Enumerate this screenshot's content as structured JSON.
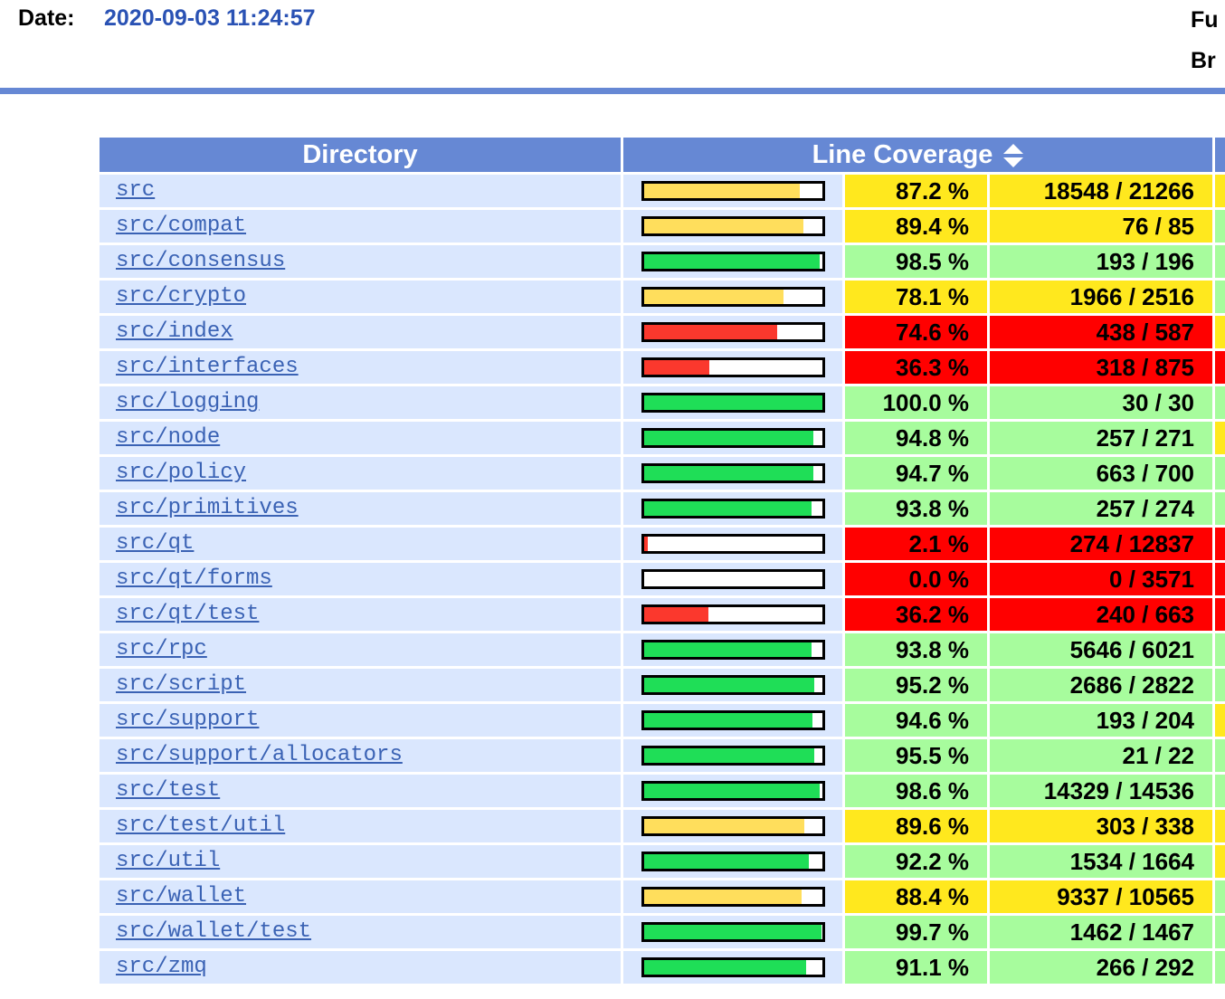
{
  "page": {
    "date_label": "Date:",
    "date_value": "2020-09-03 11:24:57",
    "top_right_fragment_1": "Fu",
    "top_right_fragment_2": "Br"
  },
  "colors": {
    "header_blue": "#6688D4",
    "row_background": "#DAE7FE",
    "coverage_high_cell": "#A7FC9D",
    "coverage_medium_cell": "#FFE81E",
    "coverage_low_cell": "#FF0000",
    "bar_high": "#1FDE57",
    "bar_medium": "#FFDE5C",
    "bar_low": "#FB382D",
    "link_blue": "#3A62B4"
  },
  "table": {
    "col_directory": "Directory",
    "col_line_coverage": "Line Coverage",
    "sort_icon": "up-down-arrows",
    "rows": [
      {
        "dir": "src",
        "pct": "87.2 %",
        "count": "18548 / 21266",
        "level": "med",
        "value": 87.2,
        "extra_level": "med"
      },
      {
        "dir": "src/compat",
        "pct": "89.4 %",
        "count": "76 / 85",
        "level": "med",
        "value": 89.4,
        "extra_level": "hi"
      },
      {
        "dir": "src/consensus",
        "pct": "98.5 %",
        "count": "193 / 196",
        "level": "hi",
        "value": 98.5,
        "extra_level": "hi"
      },
      {
        "dir": "src/crypto",
        "pct": "78.1 %",
        "count": "1966 / 2516",
        "level": "med",
        "value": 78.1,
        "extra_level": "hi"
      },
      {
        "dir": "src/index",
        "pct": "74.6 %",
        "count": "438 / 587",
        "level": "lo",
        "value": 74.6,
        "extra_level": "med"
      },
      {
        "dir": "src/interfaces",
        "pct": "36.3 %",
        "count": "318 / 875",
        "level": "lo",
        "value": 36.3,
        "extra_level": "lo"
      },
      {
        "dir": "src/logging",
        "pct": "100.0 %",
        "count": "30 / 30",
        "level": "hi",
        "value": 100.0,
        "extra_level": "hi"
      },
      {
        "dir": "src/node",
        "pct": "94.8 %",
        "count": "257 / 271",
        "level": "hi",
        "value": 94.8,
        "extra_level": "med"
      },
      {
        "dir": "src/policy",
        "pct": "94.7 %",
        "count": "663 / 700",
        "level": "hi",
        "value": 94.7,
        "extra_level": "hi"
      },
      {
        "dir": "src/primitives",
        "pct": "93.8 %",
        "count": "257 / 274",
        "level": "hi",
        "value": 93.8,
        "extra_level": "hi"
      },
      {
        "dir": "src/qt",
        "pct": "2.1 %",
        "count": "274 / 12837",
        "level": "lo",
        "value": 2.1,
        "extra_level": "lo"
      },
      {
        "dir": "src/qt/forms",
        "pct": "0.0 %",
        "count": "0 / 3571",
        "level": "lo",
        "value": 0.0,
        "extra_level": "lo"
      },
      {
        "dir": "src/qt/test",
        "pct": "36.2 %",
        "count": "240 / 663",
        "level": "lo",
        "value": 36.2,
        "extra_level": "lo"
      },
      {
        "dir": "src/rpc",
        "pct": "93.8 %",
        "count": "5646 / 6021",
        "level": "hi",
        "value": 93.8,
        "extra_level": "hi"
      },
      {
        "dir": "src/script",
        "pct": "95.2 %",
        "count": "2686 / 2822",
        "level": "hi",
        "value": 95.2,
        "extra_level": "hi"
      },
      {
        "dir": "src/support",
        "pct": "94.6 %",
        "count": "193 / 204",
        "level": "hi",
        "value": 94.6,
        "extra_level": "med"
      },
      {
        "dir": "src/support/allocators",
        "pct": "95.5 %",
        "count": "21 / 22",
        "level": "hi",
        "value": 95.5,
        "extra_level": "hi"
      },
      {
        "dir": "src/test",
        "pct": "98.6 %",
        "count": "14329 / 14536",
        "level": "hi",
        "value": 98.6,
        "extra_level": "hi"
      },
      {
        "dir": "src/test/util",
        "pct": "89.6 %",
        "count": "303 / 338",
        "level": "med",
        "value": 89.6,
        "extra_level": "med"
      },
      {
        "dir": "src/util",
        "pct": "92.2 %",
        "count": "1534 / 1664",
        "level": "hi",
        "value": 92.2,
        "extra_level": "med"
      },
      {
        "dir": "src/wallet",
        "pct": "88.4 %",
        "count": "9337 / 10565",
        "level": "med",
        "value": 88.4,
        "extra_level": "hi"
      },
      {
        "dir": "src/wallet/test",
        "pct": "99.7 %",
        "count": "1462 / 1467",
        "level": "hi",
        "value": 99.7,
        "extra_level": "hi"
      },
      {
        "dir": "src/zmq",
        "pct": "91.1 %",
        "count": "266 / 292",
        "level": "hi",
        "value": 91.1,
        "extra_level": "hi"
      }
    ]
  }
}
